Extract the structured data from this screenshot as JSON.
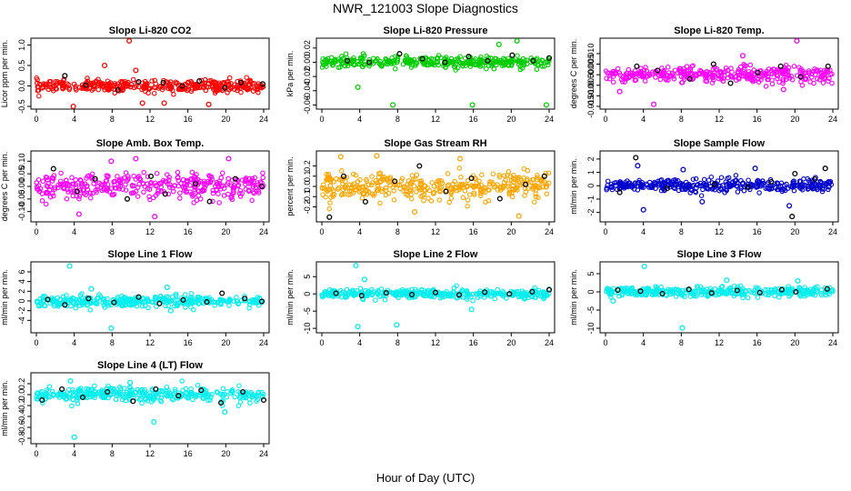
{
  "page_title": "NWR_121003  Slope Diagnostics",
  "x_label": "Hour of Day (UTC)",
  "chart_data": [
    {
      "type": "scatter",
      "title": "Slope Li-820 CO2",
      "ylabel": "Licor ppm per min.",
      "xlim": [
        0,
        24
      ],
      "x_ticks": [
        0,
        4,
        8,
        12,
        16,
        20,
        24
      ],
      "ylim": [
        -0.5,
        1.1
      ],
      "y_ticks": [
        -0.5,
        0.0,
        0.5,
        1.0
      ],
      "y_tick_labels": [
        "-0.5",
        "0.0",
        "0.5",
        "1.0"
      ],
      "y_spread": 0.13,
      "series": [
        {
          "color": "#ff0000",
          "values": [
            [
              9.8,
              1.1
            ],
            [
              3.9,
              -0.5
            ],
            [
              11.2,
              -0.42
            ],
            [
              13.5,
              -0.42
            ],
            [
              10.5,
              0.38
            ],
            [
              7.2,
              0.5
            ],
            [
              18.2,
              -0.45
            ]
          ]
        },
        {
          "color": "#000000",
          "values": [
            [
              3,
              0.25
            ],
            [
              5.2,
              0.02
            ],
            [
              8.6,
              -0.1
            ],
            [
              10.8,
              0.1
            ],
            [
              13.4,
              0.08
            ],
            [
              15.4,
              0.0
            ],
            [
              17.2,
              0.12
            ],
            [
              19.9,
              -0.05
            ],
            [
              21.6,
              0.08
            ],
            [
              23.9,
              0.05
            ]
          ]
        }
      ]
    },
    {
      "type": "scatter",
      "title": "Slope Li-820 Pressure",
      "ylabel": "kPa per min.",
      "xlim": [
        0,
        24
      ],
      "x_ticks": [
        0,
        4,
        8,
        12,
        16,
        20,
        24
      ],
      "ylim": [
        -0.062,
        0.03
      ],
      "y_ticks": [
        -0.06,
        -0.04,
        -0.02,
        0.0,
        0.02
      ],
      "y_tick_labels": [
        "-0.06",
        "-0.04",
        "-0.02",
        "0.00",
        "0.02"
      ],
      "y_spread": 0.007,
      "series": [
        {
          "color": "#00cc00",
          "values": [
            [
              7.5,
              -0.06
            ],
            [
              15.9,
              -0.06
            ],
            [
              23.7,
              -0.06
            ],
            [
              20.6,
              0.03
            ],
            [
              3.8,
              -0.035
            ],
            [
              18.7,
              0.025
            ]
          ]
        },
        {
          "color": "#000000",
          "values": [
            [
              2.7,
              0.002
            ],
            [
              5.0,
              0.0
            ],
            [
              8.2,
              0.012
            ],
            [
              10.6,
              0.005
            ],
            [
              13.0,
              0.0
            ],
            [
              15.5,
              0.008
            ],
            [
              17.5,
              0.002
            ],
            [
              20.1,
              0.01
            ],
            [
              22.3,
              0.002
            ],
            [
              24,
              0.006
            ]
          ]
        }
      ]
    },
    {
      "type": "scatter",
      "title": "Slope Li-820 Temp.",
      "ylabel": "degrees C per min.",
      "xlim": [
        0,
        24
      ],
      "x_ticks": [
        0,
        4,
        8,
        12,
        16,
        20,
        24
      ],
      "ylim": [
        -0.015,
        0.016
      ],
      "y_ticks": [
        -0.015,
        -0.01,
        -0.005,
        0.0,
        0.005,
        0.01
      ],
      "y_tick_labels": [
        "-0.015",
        "-0.010",
        "-0.005",
        "0.000",
        "0.005",
        "0.010"
      ],
      "y_spread": 0.0035,
      "series": [
        {
          "color": "#ff00ff",
          "values": [
            [
              20.2,
              0.016
            ],
            [
              5.1,
              -0.014
            ],
            [
              1.5,
              -0.008
            ],
            [
              14.5,
              0.009
            ],
            [
              18.8,
              -0.007
            ]
          ]
        },
        {
          "color": "#000000",
          "values": [
            [
              3.3,
              0.004
            ],
            [
              5.5,
              0.002
            ],
            [
              8.9,
              -0.002
            ],
            [
              11.4,
              0.005
            ],
            [
              13.2,
              -0.004
            ],
            [
              16.1,
              0.001
            ],
            [
              18.5,
              0.004
            ],
            [
              20.6,
              -0.001
            ],
            [
              23.5,
              0.004
            ]
          ]
        }
      ]
    },
    {
      "type": "scatter",
      "title": "Slope Amb. Box Temp.",
      "ylabel": "degrees C per min.",
      "xlim": [
        0,
        24
      ],
      "x_ticks": [
        0,
        4,
        8,
        12,
        16,
        20,
        24
      ],
      "ylim": [
        -0.13,
        0.13
      ],
      "y_ticks": [
        -0.1,
        -0.05,
        0.0,
        0.05,
        0.1
      ],
      "y_tick_labels": [
        "-0.10",
        "-0.05",
        "0.00",
        "0.05",
        "0.10"
      ],
      "y_spread": 0.045,
      "series": [
        {
          "color": "#ff00ff",
          "values": [
            [
              12.5,
              -0.12
            ],
            [
              10.5,
              0.11
            ],
            [
              4.5,
              -0.11
            ],
            [
              20.3,
              0.11
            ],
            [
              7.9,
              0.1
            ]
          ]
        },
        {
          "color": "#000000",
          "values": [
            [
              1.8,
              0.07
            ],
            [
              4.3,
              -0.02
            ],
            [
              6.2,
              0.03
            ],
            [
              9.6,
              -0.05
            ],
            [
              12.1,
              0.04
            ],
            [
              13.6,
              -0.03
            ],
            [
              16.8,
              0.01
            ],
            [
              18.3,
              -0.06
            ],
            [
              21.0,
              0.03
            ],
            [
              23.8,
              0.0
            ]
          ]
        }
      ]
    },
    {
      "type": "scatter",
      "title": "Slope Gas Stream RH",
      "ylabel": "percent per min.",
      "xlim": [
        0,
        24
      ],
      "x_ticks": [
        0,
        4,
        8,
        12,
        16,
        20,
        24
      ],
      "ylim": [
        -0.32,
        0.32
      ],
      "y_ticks": [
        -0.2,
        -0.1,
        0.0,
        0.1,
        0.2
      ],
      "y_tick_labels": [
        "-0.2",
        "-0.1",
        "0.0",
        "0.1",
        "0.2"
      ],
      "y_spread": 0.12,
      "series": [
        {
          "color": "#ffa500",
          "values": [
            [
              2.0,
              0.29
            ],
            [
              5.8,
              0.3
            ],
            [
              20.8,
              -0.29
            ],
            [
              14.6,
              0.27
            ],
            [
              9.8,
              -0.25
            ]
          ]
        },
        {
          "color": "#000000",
          "values": [
            [
              0.8,
              -0.3
            ],
            [
              2.3,
              0.1
            ],
            [
              4.6,
              -0.15
            ],
            [
              7.7,
              0.05
            ],
            [
              10.3,
              0.2
            ],
            [
              13.1,
              -0.05
            ],
            [
              15.8,
              0.08
            ],
            [
              18.8,
              -0.12
            ],
            [
              21.5,
              0.02
            ],
            [
              23.5,
              0.1
            ]
          ]
        }
      ]
    },
    {
      "type": "scatter",
      "title": "Slope Sample Flow",
      "ylabel": "ml/min per min.",
      "xlim": [
        0,
        24
      ],
      "x_ticks": [
        0,
        4,
        8,
        12,
        16,
        20,
        24
      ],
      "ylim": [
        -2.5,
        2.4
      ],
      "y_ticks": [
        -2,
        -1,
        0,
        1,
        2
      ],
      "y_tick_labels": [
        "-2",
        "-1",
        "0",
        "1",
        "2"
      ],
      "y_spread": 0.45,
      "series": [
        {
          "color": "#0000cc",
          "values": [
            [
              4.0,
              -1.8
            ],
            [
              3.4,
              1.5
            ],
            [
              8.2,
              1.2
            ],
            [
              10.2,
              -1.2
            ],
            [
              15.8,
              1.3
            ],
            [
              19.4,
              -1.5
            ]
          ]
        },
        {
          "color": "#000000",
          "values": [
            [
              3.2,
              2.1
            ],
            [
              19.7,
              -2.3
            ],
            [
              20.0,
              0.9
            ],
            [
              22.1,
              0.5
            ],
            [
              23.2,
              1.3
            ],
            [
              1.5,
              -0.5
            ],
            [
              6.5,
              -0.2
            ],
            [
              11.5,
              0.1
            ],
            [
              15.0,
              -0.1
            ],
            [
              17.5,
              0.3
            ]
          ]
        }
      ]
    },
    {
      "type": "scatter",
      "title": "Slope Line 1 Flow",
      "ylabel": "ml/min per min.",
      "xlim": [
        0,
        24
      ],
      "x_ticks": [
        0,
        4,
        8,
        12,
        16,
        20,
        24
      ],
      "ylim": [
        -6,
        7.5
      ],
      "y_ticks": [
        -4,
        -2,
        0,
        2,
        4,
        6
      ],
      "y_tick_labels": [
        "-4",
        "-2",
        "0",
        "2",
        "4",
        "6"
      ],
      "y_spread": 1.0,
      "series": [
        {
          "color": "#00eeee",
          "values": [
            [
              3.5,
              7.2
            ],
            [
              7.9,
              -5.6
            ],
            [
              13.8,
              2.8
            ],
            [
              14.2,
              -2.0
            ],
            [
              5.8,
              2.5
            ]
          ]
        },
        {
          "color": "#000000",
          "values": [
            [
              1.2,
              0.3
            ],
            [
              3.0,
              -0.8
            ],
            [
              5.5,
              0.5
            ],
            [
              8.2,
              -0.3
            ],
            [
              10.8,
              0.8
            ],
            [
              13.0,
              -0.5
            ],
            [
              15.5,
              0.2
            ],
            [
              18.0,
              -0.2
            ],
            [
              19.6,
              1.6
            ],
            [
              22.0,
              0.5
            ],
            [
              23.8,
              -0.1
            ]
          ]
        }
      ]
    },
    {
      "type": "scatter",
      "title": "Slope Line 2 Flow",
      "ylabel": "ml/min per min.",
      "xlim": [
        0,
        24
      ],
      "x_ticks": [
        0,
        4,
        8,
        12,
        16,
        20,
        24
      ],
      "ylim": [
        -10.5,
        8.5
      ],
      "y_ticks": [
        -10,
        -5,
        0,
        5
      ],
      "y_tick_labels": [
        "-10",
        "-5",
        "0",
        "5"
      ],
      "y_spread": 1.2,
      "series": [
        {
          "color": "#00eeee",
          "values": [
            [
              3.6,
              8.2
            ],
            [
              3.8,
              -9.5
            ],
            [
              7.9,
              -9.0
            ],
            [
              15.8,
              -4.5
            ],
            [
              4.5,
              4.2
            ]
          ]
        },
        {
          "color": "#000000",
          "values": [
            [
              1.5,
              0.2
            ],
            [
              4.2,
              -0.5
            ],
            [
              6.8,
              0.3
            ],
            [
              9.5,
              -0.2
            ],
            [
              12.0,
              0.4
            ],
            [
              14.5,
              -0.3
            ],
            [
              17.2,
              0.5
            ],
            [
              19.8,
              0.0
            ],
            [
              22.2,
              0.6
            ],
            [
              24.0,
              1.2
            ]
          ]
        }
      ]
    },
    {
      "type": "scatter",
      "title": "Slope Line 3 Flow",
      "ylabel": "ml/min per min.",
      "xlim": [
        0,
        24
      ],
      "x_ticks": [
        0,
        4,
        8,
        12,
        16,
        20,
        24
      ],
      "ylim": [
        -10.5,
        7.5
      ],
      "y_ticks": [
        -10,
        -5,
        0,
        5
      ],
      "y_tick_labels": [
        "-10",
        "-5",
        "0",
        "5"
      ],
      "y_spread": 1.2,
      "series": [
        {
          "color": "#00eeee",
          "values": [
            [
              4.1,
              7.0
            ],
            [
              8.1,
              -9.9
            ],
            [
              12.8,
              3.2
            ],
            [
              20.3,
              3.0
            ],
            [
              0.8,
              -2.5
            ]
          ]
        },
        {
          "color": "#000000",
          "values": [
            [
              1.3,
              0.5
            ],
            [
              3.7,
              0.2
            ],
            [
              6.0,
              -0.5
            ],
            [
              8.8,
              0.7
            ],
            [
              11.2,
              -0.3
            ],
            [
              13.9,
              0.4
            ],
            [
              16.3,
              -0.2
            ],
            [
              18.6,
              0.6
            ],
            [
              20.1,
              0.0
            ],
            [
              23.4,
              0.8
            ]
          ]
        }
      ]
    },
    {
      "type": "scatter",
      "title": "Slope Line 4 (LT) Flow",
      "ylabel": "ml/min per min.",
      "xlim": [
        0,
        24
      ],
      "x_ticks": [
        0,
        4,
        8,
        12,
        16,
        20,
        24
      ],
      "ylim": [
        -0.85,
        0.35
      ],
      "y_ticks": [
        -0.8,
        -0.6,
        -0.4,
        -0.2,
        0.0,
        0.2
      ],
      "y_tick_labels": [
        "-0.8",
        "-0.6",
        "-0.4",
        "-0.2",
        "0.0",
        "0.2"
      ],
      "y_spread": 0.12,
      "series": [
        {
          "color": "#00eeee",
          "values": [
            [
              4.0,
              -0.78
            ],
            [
              12.4,
              -0.5
            ],
            [
              3.6,
              0.25
            ],
            [
              19.9,
              -0.32
            ],
            [
              9.9,
              0.22
            ]
          ]
        },
        {
          "color": "#000000",
          "values": [
            [
              0.6,
              -0.1
            ],
            [
              2.7,
              0.1
            ],
            [
              4.9,
              -0.05
            ],
            [
              7.5,
              0.05
            ],
            [
              10.2,
              -0.12
            ],
            [
              12.6,
              0.1
            ],
            [
              15.0,
              -0.02
            ],
            [
              17.4,
              0.08
            ],
            [
              19.5,
              -0.15
            ],
            [
              21.8,
              0.05
            ],
            [
              24.0,
              -0.1
            ]
          ]
        }
      ]
    }
  ]
}
